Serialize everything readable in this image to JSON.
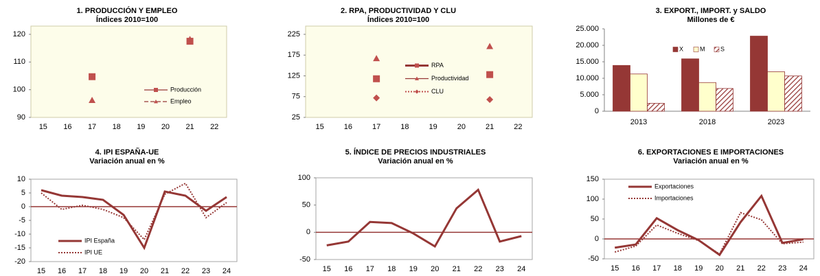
{
  "chart_data": [
    {
      "type": "line",
      "title": "1. PRODUCCIÓN Y EMPLEO",
      "subtitle": "Índices 2010=100",
      "categories": [
        "15",
        "16",
        "17",
        "18",
        "19",
        "20",
        "21",
        "22"
      ],
      "lines": false,
      "legend": "lower right",
      "series": [
        {
          "name": "Producción",
          "color": "#c0504d",
          "dash": "solid",
          "marker": "square",
          "values": [
            null,
            null,
            104.7,
            null,
            null,
            null,
            117.5,
            null
          ]
        },
        {
          "name": "Empleo",
          "color": "#c0504d",
          "dash": "dashed",
          "marker": "triangle",
          "values": [
            null,
            null,
            96.2,
            null,
            null,
            null,
            118.2,
            null
          ]
        }
      ],
      "ylim": [
        90,
        120
      ],
      "yticks": [
        90,
        100,
        110,
        120
      ]
    },
    {
      "type": "line",
      "title": "2. RPA, PRODUCTIVIDAD Y CLU",
      "subtitle": "Índices 2010=100",
      "categories": [
        "15",
        "16",
        "17",
        "18",
        "19",
        "20",
        "21",
        "22"
      ],
      "lines": false,
      "legend": "center",
      "series": [
        {
          "name": "RPA",
          "color": "#c0504d",
          "dash": "thick",
          "marker": "square",
          "values": [
            null,
            null,
            118,
            null,
            null,
            null,
            128,
            null
          ]
        },
        {
          "name": "Productividad",
          "color": "#c0504d",
          "dash": "solid",
          "marker": "triangle",
          "values": [
            null,
            null,
            167,
            null,
            null,
            null,
            196,
            null
          ]
        },
        {
          "name": "CLU",
          "color": "#c0504d",
          "dash": "dotted",
          "marker": "diamond",
          "values": [
            null,
            null,
            72,
            null,
            null,
            null,
            68,
            null
          ]
        }
      ],
      "ylim": [
        25,
        225
      ],
      "yticks": [
        25,
        75,
        125,
        175,
        225
      ]
    },
    {
      "type": "bar",
      "title": "3. EXPORT., IMPORT. y SALDO",
      "subtitle": "Millones de €",
      "categories": [
        "2013",
        "2018",
        "2023"
      ],
      "legend": "upper center",
      "series": [
        {
          "name": "X",
          "color": "#953735",
          "values": [
            13900,
            15900,
            22800
          ]
        },
        {
          "name": "M",
          "color": "#ffffcc",
          "values": [
            11300,
            8700,
            12000
          ]
        },
        {
          "name": "S",
          "color": "#953735",
          "hatch": true,
          "values": [
            2400,
            6900,
            10700
          ]
        }
      ],
      "ylim": [
        0,
        25000
      ],
      "yticks": [
        0,
        {
          "value": 5000,
          "label": "5.000"
        },
        {
          "value": 10000,
          "label": "10.000"
        },
        {
          "value": 15000,
          "label": "15.000"
        },
        {
          "value": 20000,
          "label": "20.000"
        },
        {
          "value": 25000,
          "label": "25.000"
        }
      ]
    },
    {
      "type": "line",
      "title": "4. IPI ESPAÑA-UE",
      "subtitle": "Variación anual en %",
      "categories": [
        "15",
        "16",
        "17",
        "18",
        "19",
        "20",
        "21",
        "22",
        "23",
        "24"
      ],
      "legend": "lower left",
      "series": [
        {
          "name": "IPI España",
          "color": "#953735",
          "dash": "thick",
          "values": [
            6,
            4,
            3.5,
            2.5,
            -3,
            -15,
            5.5,
            4,
            -1.5,
            3.5
          ]
        },
        {
          "name": "IPI UE",
          "color": "#953735",
          "dash": "dotted",
          "values": [
            5,
            -1,
            0.5,
            -1,
            -4,
            -12,
            4.5,
            8.5,
            -4,
            1.5
          ]
        }
      ],
      "ylim": [
        -20,
        10
      ],
      "yticks": [
        -20,
        -15,
        -10,
        -5,
        0,
        5,
        10
      ]
    },
    {
      "type": "line",
      "title": "5. ÍNDICE DE PRECIOS INDUSTRIALES",
      "subtitle": "Variación anual en %",
      "categories": [
        "15",
        "16",
        "17",
        "18",
        "19",
        "20",
        "21",
        "22",
        "23",
        "24"
      ],
      "color": "#953735",
      "values": [
        -24,
        -17,
        19,
        17,
        -2,
        -26,
        44,
        78,
        -17,
        -7
      ],
      "ylim": [
        -50,
        100
      ],
      "yticks": [
        -50,
        0,
        50,
        100
      ]
    },
    {
      "type": "line",
      "title": "6. EXPORTACIONES E IMPORTACIONES",
      "subtitle": "Variación anual en %",
      "categories": [
        "15",
        "16",
        "17",
        "18",
        "19",
        "20",
        "21",
        "22",
        "23",
        "24"
      ],
      "legend": "upper left",
      "series": [
        {
          "name": "Exportaciones",
          "color": "#953735",
          "dash": "thick",
          "values": [
            -22,
            -14,
            52,
            22,
            -3,
            -40,
            42,
            108,
            -10,
            -1
          ]
        },
        {
          "name": "Importaciones",
          "color": "#953735",
          "dash": "dotted",
          "values": [
            -33,
            -18,
            35,
            14,
            -4,
            -38,
            66,
            48,
            -12,
            -8
          ]
        }
      ],
      "ylim": [
        -50,
        150
      ],
      "yticks": [
        -50,
        0,
        50,
        100,
        150
      ]
    }
  ]
}
